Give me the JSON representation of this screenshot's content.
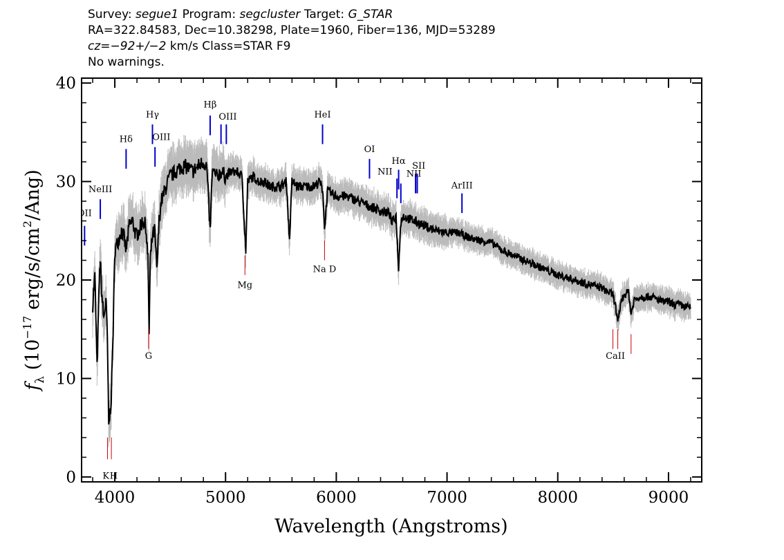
{
  "header": {
    "survey_label": "Survey:",
    "survey": "segue1",
    "program_label": "Program:",
    "program": "segcluster",
    "target_label": "Target:",
    "target": "G_STAR",
    "line2": "RA=322.84583, Dec=10.38298, Plate=1960, Fiber=136, MJD=53289",
    "cz_label": "cz",
    "cz_value": "=−92+/−2",
    "cz_rest": " km/s Class=STAR F9",
    "line4": "No warnings."
  },
  "colors": {
    "emission": "#0000cc",
    "absorption": "#cc0000",
    "flux": "#000000",
    "error": "#bbbbbb"
  },
  "chart_data": {
    "type": "line",
    "title": "",
    "xlabel": "Wavelength (Angstroms)",
    "ylabel_parts": {
      "f": "f",
      "sub": "λ",
      "pre": " (10",
      "exp1": "−17",
      "mid": " erg/s/cm",
      "exp2": "2",
      "post": "/Ang)"
    },
    "xlim": [
      3700,
      9300
    ],
    "ylim": [
      -0.5,
      40.5
    ],
    "xticks": [
      4000,
      5000,
      6000,
      7000,
      8000,
      9000
    ],
    "yticks": [
      0,
      10,
      20,
      30,
      40
    ],
    "x_tick_labels": [
      "4000",
      "5000",
      "6000",
      "7000",
      "8000",
      "9000"
    ],
    "y_tick_labels": [
      "0",
      "10",
      "20",
      "30",
      "40"
    ],
    "series": [
      {
        "x": [
          3800,
          3820,
          3840,
          3860,
          3870,
          3880,
          3900,
          3920,
          3933,
          3945,
          3968,
          3985,
          4000,
          4030,
          4060,
          4080,
          4102,
          4130,
          4160,
          4190,
          4220,
          4250,
          4280,
          4300,
          4310,
          4320,
          4340,
          4360,
          4380,
          4400,
          4420,
          4450,
          4480,
          4500,
          4550,
          4600,
          4650,
          4700,
          4750,
          4800,
          4830,
          4861,
          4880,
          4920,
          4960,
          5000,
          5050,
          5100,
          5150,
          5172,
          5183,
          5200,
          5250,
          5300,
          5350,
          5400,
          5450,
          5500,
          5550,
          5577,
          5600,
          5650,
          5700,
          5750,
          5800,
          5850,
          5880,
          5893,
          5920,
          6000,
          6100,
          6200,
          6300,
          6400,
          6480,
          6500,
          6540,
          6563,
          6580,
          6600,
          6700,
          6800,
          6900,
          7000,
          7100,
          7200,
          7300,
          7400,
          7500,
          7600,
          7700,
          7800,
          7900,
          8000,
          8100,
          8200,
          8300,
          8400,
          8450,
          8498,
          8520,
          8542,
          8570,
          8600,
          8640,
          8662,
          8690,
          8750,
          8800,
          8850,
          8900,
          8950,
          9000,
          9050,
          9100,
          9150,
          9200
        ],
        "y": [
          17.5,
          20.5,
          11,
          20,
          22,
          19,
          16,
          18,
          14,
          5,
          8,
          15,
          23,
          24,
          25,
          24.5,
          23,
          25.5,
          26,
          24.5,
          25,
          26,
          25.5,
          22,
          14.5,
          22,
          24.5,
          25,
          21,
          26,
          28,
          29,
          30,
          30.5,
          31,
          31.5,
          31.5,
          31,
          31.5,
          32,
          31.5,
          25,
          31,
          30.5,
          31,
          30.5,
          31,
          31,
          30.5,
          25,
          23,
          30,
          30.5,
          30,
          30,
          29.5,
          29.5,
          29.5,
          30,
          24,
          30,
          29.5,
          29.5,
          29.5,
          29.5,
          30,
          29,
          25,
          29,
          28.5,
          28.5,
          28,
          27.5,
          27,
          26.8,
          25.8,
          26.5,
          21,
          25.8,
          26.5,
          26,
          25.5,
          25,
          24.8,
          24.8,
          24.3,
          24,
          23.8,
          23,
          22.5,
          22,
          21.5,
          21,
          20.5,
          20.2,
          19.8,
          19.5,
          19.2,
          18.8,
          18.5,
          17.5,
          15.5,
          17.8,
          18.5,
          18.8,
          16.5,
          18,
          18.3,
          18.3,
          18.3,
          18,
          17.8,
          17.8,
          17.5,
          17.5,
          17.3,
          17.2
        ]
      }
    ],
    "emission_lines": [
      {
        "label": "OII",
        "lambda": 3727,
        "y": [
          23.5,
          25.5
        ]
      },
      {
        "label": "NeIII",
        "lambda": 3869,
        "y": [
          26.2,
          28.2
        ]
      },
      {
        "label": "Hδ",
        "lambda": 4102,
        "y": [
          31.3,
          33.3
        ]
      },
      {
        "label": "Hγ",
        "lambda": 4340,
        "y": [
          33.8,
          35.8
        ]
      },
      {
        "label": "OIII",
        "lambda": 4363,
        "y": [
          31.5,
          33.5
        ]
      },
      {
        "label": "Hβ",
        "lambda": 4861,
        "y": [
          34.7,
          36.7
        ]
      },
      {
        "label": "OIII",
        "lambda": 4959,
        "y": [
          33.8,
          35.8
        ]
      },
      {
        "label": "OIII",
        "lambda": 5007,
        "y": [
          33.8,
          35.8
        ]
      },
      {
        "label": "HeI",
        "lambda": 5876,
        "y": [
          33.8,
          35.8
        ]
      },
      {
        "label": "OI",
        "lambda": 6300,
        "y": [
          30.3,
          32.3
        ]
      },
      {
        "label": "NII",
        "lambda": 6548,
        "y": [
          28.3,
          30.3
        ]
      },
      {
        "label": "Hα",
        "lambda": 6563,
        "y": [
          29.2,
          31.2
        ]
      },
      {
        "label": "NII",
        "lambda": 6583,
        "y": [
          27.8,
          29.8
        ]
      },
      {
        "label": "SII",
        "lambda": 6716,
        "y": [
          28.8,
          30.8
        ]
      },
      {
        "label": "SII",
        "lambda": 6731,
        "y": [
          28.8,
          30.8
        ]
      },
      {
        "label": "ArIII",
        "lambda": 7135,
        "y": [
          26.8,
          28.8
        ]
      }
    ],
    "emission_label_text": [
      {
        "text": "OII",
        "lambda": 3727,
        "y": 26.5
      },
      {
        "text": "NeIII",
        "lambda": 3869,
        "y": 28.9
      },
      {
        "text": "Hδ",
        "lambda": 4102,
        "y": 34
      },
      {
        "text": "Hγ",
        "lambda": 4340,
        "y": 36.5
      },
      {
        "text": "OIII",
        "lambda": 4420,
        "y": 34.2
      },
      {
        "text": "Hβ",
        "lambda": 4861,
        "y": 37.5
      },
      {
        "text": "OIII",
        "lambda": 5020,
        "y": 36.3
      },
      {
        "text": "HeI",
        "lambda": 5876,
        "y": 36.5
      },
      {
        "text": "OI",
        "lambda": 6300,
        "y": 33
      },
      {
        "text": "NII",
        "lambda": 6440,
        "y": 30.7
      },
      {
        "text": "Hα",
        "lambda": 6563,
        "y": 31.8
      },
      {
        "text": "NII",
        "lambda": 6700,
        "y": 30.5
      },
      {
        "text": "SII",
        "lambda": 6745,
        "y": 31.3
      },
      {
        "text": "ArIII",
        "lambda": 7135,
        "y": 29.3
      }
    ],
    "absorption_lines": [
      {
        "label": "K",
        "lambda": 3934,
        "y": [
          1.8,
          4
        ]
      },
      {
        "label": "H",
        "lambda": 3969,
        "y": [
          1.8,
          4
        ]
      },
      {
        "label": "G",
        "lambda": 4305,
        "y": [
          13,
          15
        ]
      },
      {
        "label": "Mg",
        "lambda": 5175,
        "y": [
          20.5,
          22.5
        ]
      },
      {
        "label": "Na",
        "lambda": 5894,
        "y": [
          22,
          24
        ]
      },
      {
        "label": "CaII",
        "lambda": 8498,
        "y": [
          13,
          15
        ]
      },
      {
        "label": "CaII",
        "lambda": 8542,
        "y": [
          13,
          15
        ]
      },
      {
        "label": "CaII",
        "lambda": 8662,
        "y": [
          12.5,
          14.5
        ]
      }
    ],
    "absorption_label_text": [
      {
        "text": "K",
        "lambda": 3920,
        "y": -0.2
      },
      {
        "text": "H",
        "lambda": 3990,
        "y": -0.2
      },
      {
        "text": "G",
        "lambda": 4305,
        "y": 12
      },
      {
        "text": "Mg",
        "lambda": 5175,
        "y": 19.2
      },
      {
        "text": "Na  D",
        "lambda": 5894,
        "y": 20.8
      },
      {
        "text": "CaII",
        "lambda": 8520,
        "y": 12
      }
    ]
  }
}
